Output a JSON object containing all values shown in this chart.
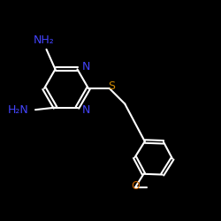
{
  "background_color": "#000000",
  "bond_color": "#ffffff",
  "bond_width": 1.5,
  "figsize": [
    2.5,
    2.5
  ],
  "dpi": 100,
  "atom_colors": {
    "N": "#4444ff",
    "S": "#cc8800",
    "O": "#cc6600",
    "C": "#ffffff"
  }
}
